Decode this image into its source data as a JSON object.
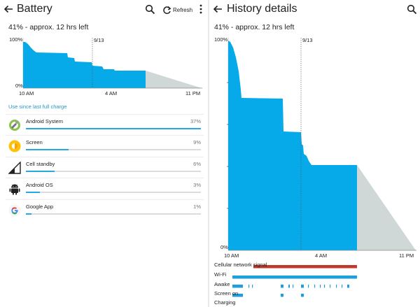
{
  "left": {
    "title": "Battery",
    "refresh_label": "Refresh",
    "summary": "41% - approx. 12 hrs left",
    "chart": {
      "y_top_label": "100%",
      "y_bottom_label": "0%",
      "date_marker": "9/13",
      "x_labels": [
        "10 AM",
        "4 AM",
        "11 PM"
      ]
    },
    "use_since_label": "Use since last full charge",
    "apps": [
      {
        "name": "Android System",
        "percent_label": "37%",
        "percent": 37,
        "icon": "android-system-icon"
      },
      {
        "name": "Screen",
        "percent_label": "9%",
        "percent": 9,
        "icon": "screen-brightness-icon"
      },
      {
        "name": "Cell standby",
        "percent_label": "6%",
        "percent": 6,
        "icon": "cell-signal-icon"
      },
      {
        "name": "Android OS",
        "percent_label": "3%",
        "percent": 3,
        "icon": "android-robot-icon"
      },
      {
        "name": "Google App",
        "percent_label": "1%",
        "percent": 1,
        "icon": "google-g-icon"
      }
    ]
  },
  "right": {
    "title": "History details",
    "summary": "41% - approx. 12 hrs left",
    "chart": {
      "y_top_label": "100%",
      "y_bottom_label": "0%",
      "date_marker": "9/13",
      "x_labels": [
        "10 AM",
        "4 AM",
        "11 PM"
      ]
    },
    "signals": {
      "cellular": "Cellular network signal",
      "wifi": "Wi-Fi",
      "awake": "Awake",
      "screen_on": "Screen on",
      "charging": "Charging"
    }
  },
  "colors": {
    "battery_fill": "#06aae8",
    "prediction": "#cfd8d6",
    "cellular_bar": "#c0392b",
    "wifi_bar": "#1e9fdd",
    "accent_link": "#2196c8"
  },
  "chart_data": {
    "type": "area",
    "title": "",
    "xlabel": "",
    "ylabel": "",
    "x_tick_labels": [
      "10 AM",
      "4 AM",
      "11 PM"
    ],
    "ylim": [
      0,
      100
    ],
    "series": [
      {
        "values_percent": [
          100,
          99,
          95,
          86,
          84,
          84,
          70,
          70,
          62,
          61,
          50,
          47,
          47,
          41,
          41
        ]
      },
      {
        "values_percent": [
          41,
          0
        ]
      }
    ],
    "annotations": [
      "9/13"
    ]
  }
}
